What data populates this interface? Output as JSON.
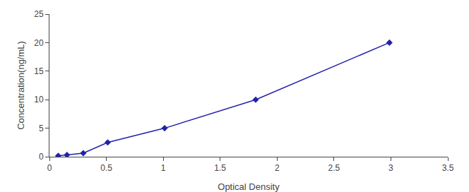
{
  "chart_data": {
    "type": "line",
    "x": [
      0.077,
      0.154,
      0.297,
      0.512,
      1.012,
      1.812,
      2.987
    ],
    "values": [
      0.156,
      0.312,
      0.625,
      2.5,
      5.0,
      10.0,
      20.0
    ],
    "color": "#2222AA",
    "marker": "diamond",
    "line_style": "solid",
    "xlabel": "Optical Density",
    "ylabel": "Concentration(ng/mL)",
    "xlim": [
      0,
      3.5
    ],
    "ylim": [
      0,
      25
    ],
    "xticks": [
      0,
      0.5,
      1.0,
      1.5,
      2.0,
      2.5,
      3.0,
      3.5
    ],
    "yticks": [
      0,
      5,
      10,
      15,
      20,
      25
    ],
    "grid": false
  }
}
